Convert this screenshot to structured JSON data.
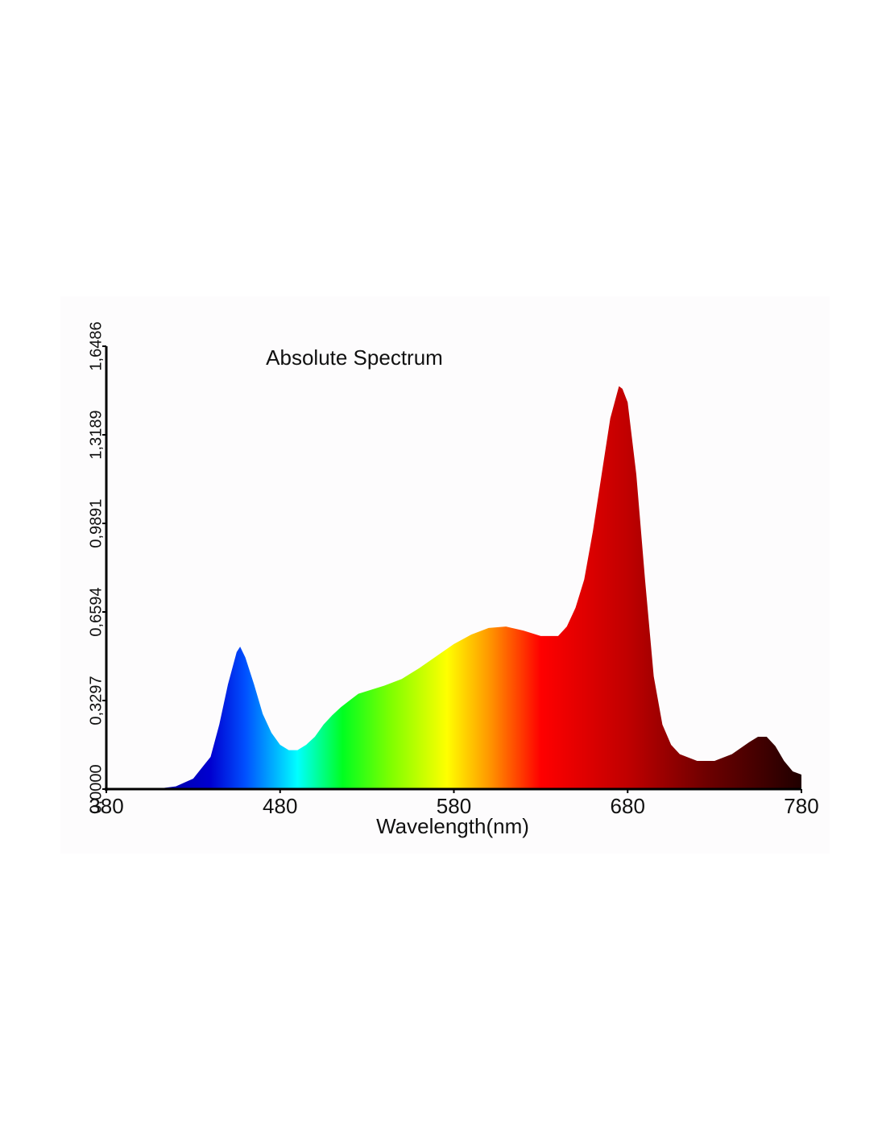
{
  "chart_data": {
    "type": "area",
    "title": "Absolute Spectrum",
    "x_label": "Wavelength(nm)",
    "x": [
      380,
      390,
      400,
      405,
      410,
      420,
      430,
      440,
      445,
      450,
      455,
      457,
      460,
      465,
      470,
      475,
      480,
      485,
      490,
      495,
      500,
      505,
      510,
      515,
      520,
      525,
      530,
      540,
      550,
      560,
      570,
      580,
      590,
      600,
      610,
      620,
      630,
      640,
      645,
      650,
      655,
      660,
      665,
      670,
      675,
      677,
      680,
      685,
      690,
      695,
      700,
      705,
      710,
      720,
      730,
      740,
      750,
      755,
      760,
      765,
      770,
      775,
      780
    ],
    "values": [
      0,
      0,
      0,
      0.001,
      0.002,
      0.01,
      0.039,
      0.12,
      0.24,
      0.39,
      0.51,
      0.53,
      0.49,
      0.39,
      0.28,
      0.21,
      0.165,
      0.145,
      0.145,
      0.165,
      0.195,
      0.24,
      0.275,
      0.305,
      0.33,
      0.355,
      0.365,
      0.385,
      0.41,
      0.45,
      0.495,
      0.54,
      0.575,
      0.6,
      0.605,
      0.59,
      0.57,
      0.57,
      0.605,
      0.675,
      0.78,
      0.96,
      1.17,
      1.38,
      1.5,
      1.49,
      1.44,
      1.17,
      0.78,
      0.42,
      0.24,
      0.165,
      0.13,
      0.105,
      0.105,
      0.13,
      0.175,
      0.195,
      0.195,
      0.16,
      0.105,
      0.066,
      0.054
    ],
    "xlim": [
      380,
      780
    ],
    "xticks": [
      380,
      480,
      580,
      680,
      780
    ],
    "ylim": [
      0,
      1.6486
    ],
    "yticks": [
      {
        "value": 0,
        "label": "0,0000"
      },
      {
        "value": 0.3297,
        "label": "0,3297"
      },
      {
        "value": 0.6594,
        "label": "0,6594"
      },
      {
        "value": 0.9891,
        "label": "0,9891"
      },
      {
        "value": 1.3189,
        "label": "1,3189"
      },
      {
        "value": 1.6486,
        "label": "1,6486"
      }
    ]
  }
}
